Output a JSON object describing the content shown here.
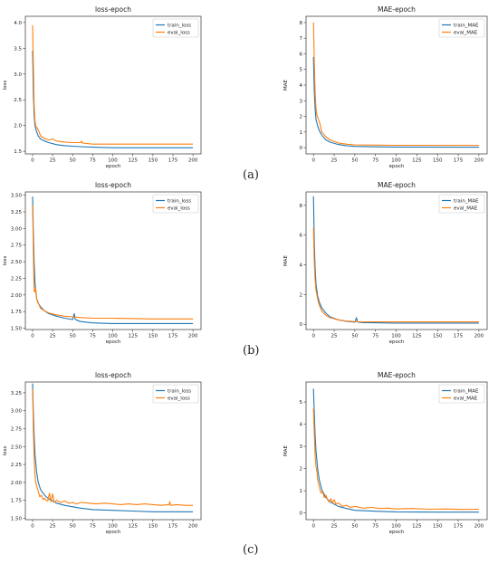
{
  "colors": {
    "train": "#1f77b4",
    "eval": "#ff7f0e"
  },
  "captions": [
    "(a)",
    "(b)",
    "(c)"
  ],
  "chart_data": [
    {
      "type": "line",
      "title": "loss-epoch",
      "xlabel": "epoch",
      "ylabel": "loss",
      "xlim": [
        -9,
        210
      ],
      "ylim": [
        1.45,
        4.12
      ],
      "xticks": [
        0,
        25,
        50,
        75,
        100,
        125,
        150,
        175,
        200
      ],
      "yticks": [
        1.5,
        2.0,
        2.5,
        3.0,
        3.5,
        4.0
      ],
      "ytick_labels": [
        "1.5",
        "2.0",
        "2.5",
        "3.0",
        "3.5",
        "4.0"
      ],
      "legend": "top-right",
      "series": [
        {
          "name": "train_loss",
          "color": "train",
          "x": [
            0,
            1,
            2,
            3,
            5,
            7,
            10,
            15,
            20,
            30,
            40,
            50,
            60,
            75,
            100,
            150,
            200
          ],
          "y": [
            3.45,
            2.6,
            2.2,
            2.0,
            1.88,
            1.8,
            1.74,
            1.7,
            1.67,
            1.63,
            1.61,
            1.6,
            1.59,
            1.58,
            1.57,
            1.57,
            1.57
          ]
        },
        {
          "name": "eval_loss",
          "color": "eval",
          "x": [
            0,
            1,
            2,
            3,
            4,
            6,
            8,
            10,
            15,
            20,
            25,
            30,
            40,
            50,
            60,
            61,
            62,
            75,
            100,
            150,
            200
          ],
          "y": [
            3.95,
            3.1,
            2.4,
            2.1,
            1.98,
            1.95,
            1.88,
            1.8,
            1.75,
            1.72,
            1.74,
            1.7,
            1.68,
            1.67,
            1.67,
            1.7,
            1.66,
            1.64,
            1.64,
            1.64,
            1.64
          ]
        }
      ]
    },
    {
      "type": "line",
      "title": "MAE-epoch",
      "xlabel": "epoch",
      "ylabel": "MAE",
      "xlim": [
        -9,
        210
      ],
      "ylim": [
        -0.4,
        8.4
      ],
      "xticks": [
        0,
        25,
        50,
        75,
        100,
        125,
        150,
        175,
        200
      ],
      "yticks": [
        0,
        1,
        2,
        3,
        4,
        5,
        6,
        7,
        8
      ],
      "ytick_labels": [
        "0",
        "1",
        "2",
        "3",
        "4",
        "5",
        "6",
        "7",
        "8"
      ],
      "legend": "top-right",
      "series": [
        {
          "name": "train_MAE",
          "color": "train",
          "x": [
            0,
            1,
            2,
            3,
            5,
            7,
            10,
            15,
            20,
            30,
            40,
            50,
            75,
            100,
            200
          ],
          "y": [
            5.8,
            3.6,
            2.5,
            1.8,
            1.4,
            1.1,
            0.8,
            0.5,
            0.35,
            0.2,
            0.12,
            0.08,
            0.05,
            0.04,
            0.03
          ]
        },
        {
          "name": "eval_MAE",
          "color": "eval",
          "x": [
            0,
            1,
            2,
            3,
            4,
            6,
            8,
            10,
            15,
            20,
            30,
            40,
            50,
            75,
            100,
            200
          ],
          "y": [
            8.0,
            5.5,
            3.6,
            2.5,
            2.1,
            1.8,
            1.5,
            1.0,
            0.7,
            0.5,
            0.3,
            0.22,
            0.18,
            0.16,
            0.15,
            0.15
          ]
        }
      ]
    },
    {
      "type": "line",
      "title": "loss-epoch",
      "xlabel": "epoch",
      "ylabel": "loss",
      "xlim": [
        -9,
        210
      ],
      "ylim": [
        1.48,
        3.55
      ],
      "xticks": [
        0,
        25,
        50,
        75,
        100,
        125,
        150,
        175,
        200
      ],
      "yticks": [
        1.5,
        1.75,
        2.0,
        2.25,
        2.5,
        2.75,
        3.0,
        3.25,
        3.5
      ],
      "ytick_labels": [
        "1.50",
        "1.75",
        "2.00",
        "2.25",
        "2.50",
        "2.75",
        "3.00",
        "3.25",
        "3.50"
      ],
      "legend": "top-right",
      "series": [
        {
          "name": "train_loss",
          "color": "train",
          "x": [
            0,
            1,
            2,
            3,
            4,
            5,
            7,
            10,
            15,
            20,
            30,
            40,
            50,
            52,
            53,
            55,
            60,
            75,
            100,
            150,
            200
          ],
          "y": [
            3.48,
            2.9,
            2.5,
            2.2,
            2.05,
            1.95,
            1.88,
            1.82,
            1.76,
            1.72,
            1.68,
            1.65,
            1.63,
            1.72,
            1.64,
            1.62,
            1.6,
            1.58,
            1.57,
            1.57,
            1.57
          ]
        },
        {
          "name": "eval_loss",
          "color": "eval",
          "x": [
            0,
            1,
            2,
            3,
            4,
            5,
            6,
            8,
            10,
            15,
            20,
            30,
            40,
            50,
            60,
            75,
            100,
            150,
            200
          ],
          "y": [
            3.35,
            2.6,
            2.05,
            2.05,
            2.1,
            1.95,
            1.9,
            1.85,
            1.8,
            1.76,
            1.73,
            1.7,
            1.68,
            1.67,
            1.66,
            1.65,
            1.65,
            1.64,
            1.64
          ]
        }
      ]
    },
    {
      "type": "line",
      "title": "MAE-epoch",
      "xlabel": "epoch",
      "ylabel": "MAE",
      "xlim": [
        -9,
        210
      ],
      "ylim": [
        -0.35,
        8.9
      ],
      "xticks": [
        0,
        25,
        50,
        75,
        100,
        125,
        150,
        175,
        200
      ],
      "yticks": [
        0,
        2,
        4,
        6,
        8
      ],
      "ytick_labels": [
        "0",
        "2",
        "4",
        "6",
        "8"
      ],
      "legend": "top-right",
      "series": [
        {
          "name": "train_MAE",
          "color": "train",
          "x": [
            0,
            1,
            2,
            3,
            5,
            7,
            10,
            15,
            20,
            30,
            40,
            50,
            52,
            53,
            54,
            60,
            75,
            100,
            200
          ],
          "y": [
            8.6,
            5.5,
            3.8,
            2.7,
            1.9,
            1.5,
            1.1,
            0.75,
            0.5,
            0.3,
            0.2,
            0.15,
            0.45,
            0.2,
            0.15,
            0.12,
            0.1,
            0.08,
            0.08
          ]
        },
        {
          "name": "eval_MAE",
          "color": "eval",
          "x": [
            0,
            1,
            2,
            3,
            5,
            7,
            10,
            15,
            20,
            30,
            40,
            50,
            60,
            75,
            100,
            200
          ],
          "y": [
            6.5,
            4.2,
            3.0,
            2.3,
            1.7,
            1.3,
            0.9,
            0.6,
            0.45,
            0.3,
            0.22,
            0.18,
            0.17,
            0.17,
            0.16,
            0.16
          ]
        }
      ]
    },
    {
      "type": "line",
      "title": "loss-epoch",
      "xlabel": "epoch",
      "ylabel": "loss",
      "xlim": [
        -9,
        210
      ],
      "ylim": [
        1.48,
        3.4
      ],
      "xticks": [
        0,
        25,
        50,
        75,
        100,
        125,
        150,
        175,
        200
      ],
      "yticks": [
        1.5,
        1.75,
        2.0,
        2.25,
        2.5,
        2.75,
        3.0,
        3.25
      ],
      "ytick_labels": [
        "1.50",
        "1.75",
        "2.00",
        "2.25",
        "2.50",
        "2.75",
        "3.00",
        "3.25"
      ],
      "legend": "top-right",
      "series": [
        {
          "name": "train_loss",
          "color": "train",
          "x": [
            0,
            1,
            2,
            3,
            5,
            7,
            10,
            15,
            20,
            25,
            30,
            40,
            50,
            60,
            75,
            100,
            125,
            150,
            175,
            200
          ],
          "y": [
            3.38,
            2.95,
            2.65,
            2.4,
            2.15,
            2.0,
            1.9,
            1.82,
            1.77,
            1.74,
            1.71,
            1.68,
            1.66,
            1.64,
            1.62,
            1.61,
            1.6,
            1.59,
            1.59,
            1.59
          ]
        },
        {
          "name": "eval_loss",
          "color": "eval",
          "x": [
            0,
            1,
            2,
            3,
            4,
            5,
            7,
            9,
            11,
            13,
            15,
            17,
            19,
            21,
            23,
            25,
            27,
            30,
            35,
            40,
            45,
            50,
            55,
            60,
            70,
            80,
            90,
            100,
            110,
            120,
            130,
            140,
            150,
            160,
            170,
            171,
            172,
            180,
            190,
            200
          ],
          "y": [
            3.3,
            2.7,
            2.35,
            2.1,
            2.0,
            1.95,
            1.88,
            1.8,
            1.82,
            1.76,
            1.78,
            1.75,
            1.74,
            1.85,
            1.73,
            1.84,
            1.72,
            1.75,
            1.72,
            1.74,
            1.71,
            1.72,
            1.7,
            1.72,
            1.71,
            1.7,
            1.71,
            1.7,
            1.69,
            1.7,
            1.69,
            1.7,
            1.69,
            1.68,
            1.69,
            1.73,
            1.68,
            1.69,
            1.68,
            1.68
          ]
        }
      ]
    },
    {
      "type": "line",
      "title": "MAE-epoch",
      "xlabel": "epoch",
      "ylabel": "MAE",
      "xlim": [
        -9,
        210
      ],
      "ylim": [
        -0.3,
        5.9
      ],
      "xticks": [
        0,
        25,
        50,
        75,
        100,
        125,
        150,
        175,
        200
      ],
      "yticks": [
        0,
        1,
        2,
        3,
        4,
        5
      ],
      "ytick_labels": [
        "0",
        "1",
        "2",
        "3",
        "4",
        "5"
      ],
      "legend": "top-right",
      "series": [
        {
          "name": "train_MAE",
          "color": "train",
          "x": [
            0,
            1,
            2,
            3,
            5,
            7,
            10,
            15,
            20,
            30,
            40,
            50,
            75,
            100,
            150,
            200
          ],
          "y": [
            5.6,
            4.5,
            3.5,
            2.8,
            2.0,
            1.5,
            1.05,
            0.7,
            0.5,
            0.3,
            0.2,
            0.12,
            0.08,
            0.05,
            0.04,
            0.04
          ]
        },
        {
          "name": "eval_MAE",
          "color": "eval",
          "x": [
            0,
            1,
            2,
            3,
            4,
            5,
            7,
            9,
            11,
            13,
            15,
            17,
            19,
            21,
            23,
            25,
            27,
            30,
            35,
            40,
            45,
            50,
            60,
            70,
            80,
            90,
            100,
            120,
            140,
            160,
            180,
            200
          ],
          "y": [
            4.7,
            3.6,
            2.6,
            2.1,
            1.9,
            1.5,
            1.2,
            0.9,
            0.95,
            0.7,
            0.8,
            0.6,
            0.5,
            0.65,
            0.45,
            0.6,
            0.4,
            0.45,
            0.3,
            0.35,
            0.25,
            0.3,
            0.22,
            0.25,
            0.2,
            0.22,
            0.18,
            0.2,
            0.17,
            0.18,
            0.16,
            0.17
          ]
        }
      ]
    }
  ]
}
